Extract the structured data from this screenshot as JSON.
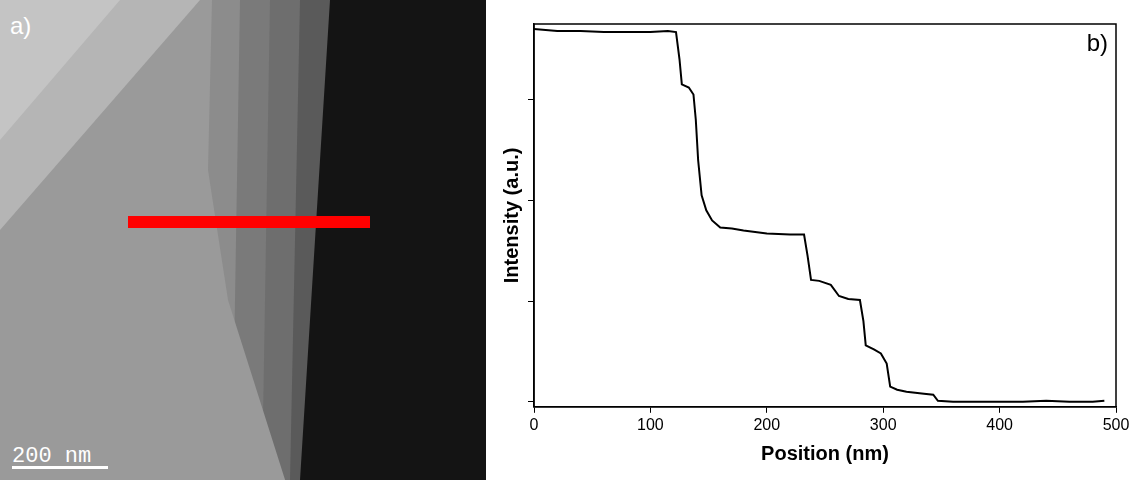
{
  "image": {
    "label": "a)",
    "scale_bar": "200 nm"
  },
  "chart_data": {
    "type": "line",
    "annotation": "b)",
    "x_label": "Position (nm)",
    "y_label": "Intensity (a.u.)",
    "x": [
      0,
      10,
      20,
      40,
      60,
      80,
      100,
      115,
      122,
      125,
      127,
      133,
      137,
      139,
      141,
      144,
      148,
      153,
      160,
      170,
      180,
      200,
      220,
      232,
      235,
      238,
      245,
      255,
      262,
      270,
      280,
      283,
      285,
      292,
      298,
      303,
      306,
      312,
      320,
      335,
      343,
      347,
      360,
      380,
      400,
      420,
      440,
      460,
      480,
      490
    ],
    "values": [
      3.7,
      3.69,
      3.68,
      3.68,
      3.67,
      3.67,
      3.67,
      3.68,
      3.67,
      3.4,
      3.15,
      3.12,
      3.05,
      2.8,
      2.4,
      2.05,
      1.9,
      1.8,
      1.73,
      1.72,
      1.7,
      1.67,
      1.66,
      1.66,
      1.45,
      1.21,
      1.2,
      1.16,
      1.05,
      1.02,
      1.01,
      0.8,
      0.56,
      0.52,
      0.48,
      0.38,
      0.15,
      0.12,
      0.1,
      0.08,
      0.07,
      0.01,
      0.0,
      0.0,
      0.0,
      0.0,
      0.01,
      0.0,
      0.0,
      0.01
    ],
    "color": "#000000",
    "xlim": [
      0,
      500
    ],
    "xticks": [
      0,
      100,
      200,
      300,
      400,
      500
    ],
    "ylim": [
      -0.05,
      3.75
    ],
    "yticks": [
      0,
      1,
      2,
      3
    ],
    "tick_labels": "x",
    "grid": false
  }
}
